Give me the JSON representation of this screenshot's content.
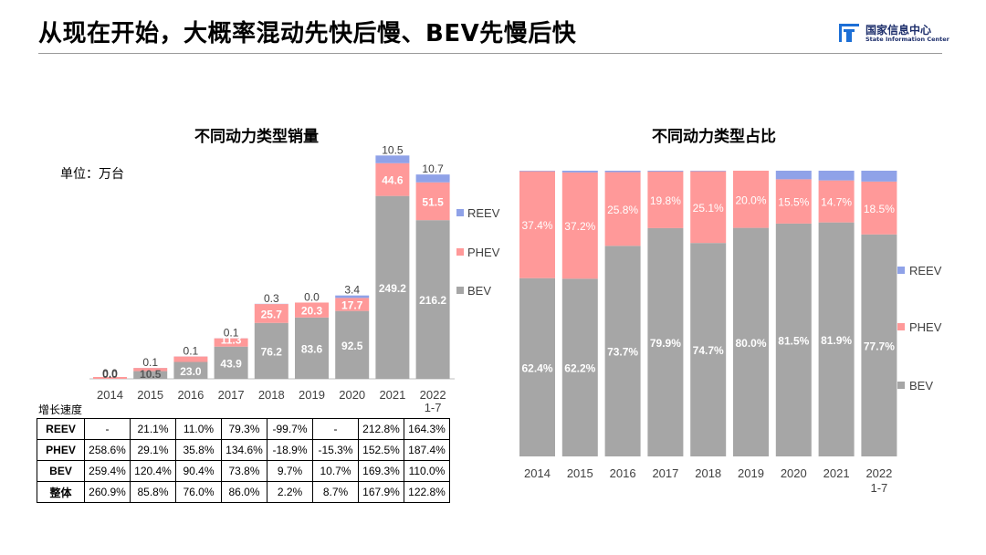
{
  "slide": {
    "title": "从现在开始，大概率混动先快后慢、BEV先慢后快"
  },
  "logo": {
    "name_cn": "国家信息中心",
    "name_en": "State Information Center"
  },
  "colors": {
    "BEV": "#a6a6a6",
    "PHEV": "#ff9999",
    "REEV": "#8fa2e8"
  },
  "chart_data": [
    {
      "type": "bar",
      "stacked": true,
      "title": "不同动力类型销量",
      "unit_label": "单位：万台",
      "categories": [
        "2014",
        "2015",
        "2016",
        "2017",
        "2018",
        "2019",
        "2020",
        "2021",
        "2022\n1-7"
      ],
      "series": [
        {
          "name": "BEV",
          "values": [
            0.0,
            10.5,
            23.0,
            43.9,
            76.2,
            83.6,
            92.5,
            249.2,
            216.2
          ],
          "labels": [
            "0.0",
            "10.5",
            "23.0",
            "43.9",
            "76.2",
            "83.6",
            "92.5",
            "249.2",
            "216.2"
          ]
        },
        {
          "name": "PHEV",
          "values": [
            0.0,
            4.3,
            7.4,
            11.3,
            25.7,
            20.3,
            17.7,
            44.6,
            51.5
          ],
          "labels": [
            "",
            "",
            "",
            "11.3",
            "25.7",
            "20.3",
            "17.7",
            "44.6",
            "51.5"
          ]
        },
        {
          "name": "REEV",
          "values": [
            0.0,
            0.1,
            0.1,
            0.1,
            0.3,
            0.0,
            3.4,
            10.5,
            10.7
          ],
          "labels": [
            "0.0",
            "0.1",
            "0.1",
            "0.1",
            "0.3",
            "0.0",
            "3.4",
            "10.5",
            "10.7"
          ]
        }
      ],
      "legend": "right",
      "grid": false
    },
    {
      "type": "bar",
      "stacked": true,
      "percent": true,
      "title": "不同动力类型占比",
      "categories": [
        "2014",
        "2015",
        "2016",
        "2017",
        "2018",
        "2019",
        "2020",
        "2021",
        "2022\n1-7"
      ],
      "series": [
        {
          "name": "BEV",
          "values": [
            62.4,
            62.2,
            73.7,
            79.9,
            74.7,
            80.0,
            81.5,
            81.9,
            77.7
          ],
          "labels": [
            "62.4%",
            "62.2%",
            "73.7%",
            "79.9%",
            "74.7%",
            "80.0%",
            "81.5%",
            "81.9%",
            "77.7%"
          ]
        },
        {
          "name": "PHEV",
          "values": [
            37.4,
            37.2,
            25.8,
            19.8,
            25.1,
            20.0,
            15.5,
            14.7,
            18.5
          ],
          "labels": [
            "37.4%",
            "37.2%",
            "25.8%",
            "19.8%",
            "25.1%",
            "20.0%",
            "15.5%",
            "14.7%",
            "18.5%"
          ]
        },
        {
          "name": "REEV",
          "values": [
            0.2,
            0.6,
            0.5,
            0.3,
            0.2,
            0.0,
            3.0,
            3.4,
            3.8
          ]
        }
      ],
      "ylim": [
        0,
        100
      ],
      "legend": "right",
      "grid": false
    }
  ],
  "growth_table": {
    "label": "增长速度",
    "rows": [
      {
        "name": "REEV",
        "cells": [
          "-",
          "21.1%",
          "11.0%",
          "79.3%",
          "-99.7%",
          "-",
          "212.8%",
          "164.3%"
        ]
      },
      {
        "name": "PHEV",
        "cells": [
          "258.6%",
          "29.1%",
          "35.8%",
          "134.6%",
          "-18.9%",
          "-15.3%",
          "152.5%",
          "187.4%"
        ]
      },
      {
        "name": "BEV",
        "cells": [
          "259.4%",
          "120.4%",
          "90.4%",
          "73.8%",
          "9.7%",
          "10.7%",
          "169.3%",
          "110.0%"
        ]
      },
      {
        "name": "整体",
        "cells": [
          "260.9%",
          "85.8%",
          "76.0%",
          "86.0%",
          "2.2%",
          "8.7%",
          "167.9%",
          "122.8%"
        ]
      }
    ]
  }
}
